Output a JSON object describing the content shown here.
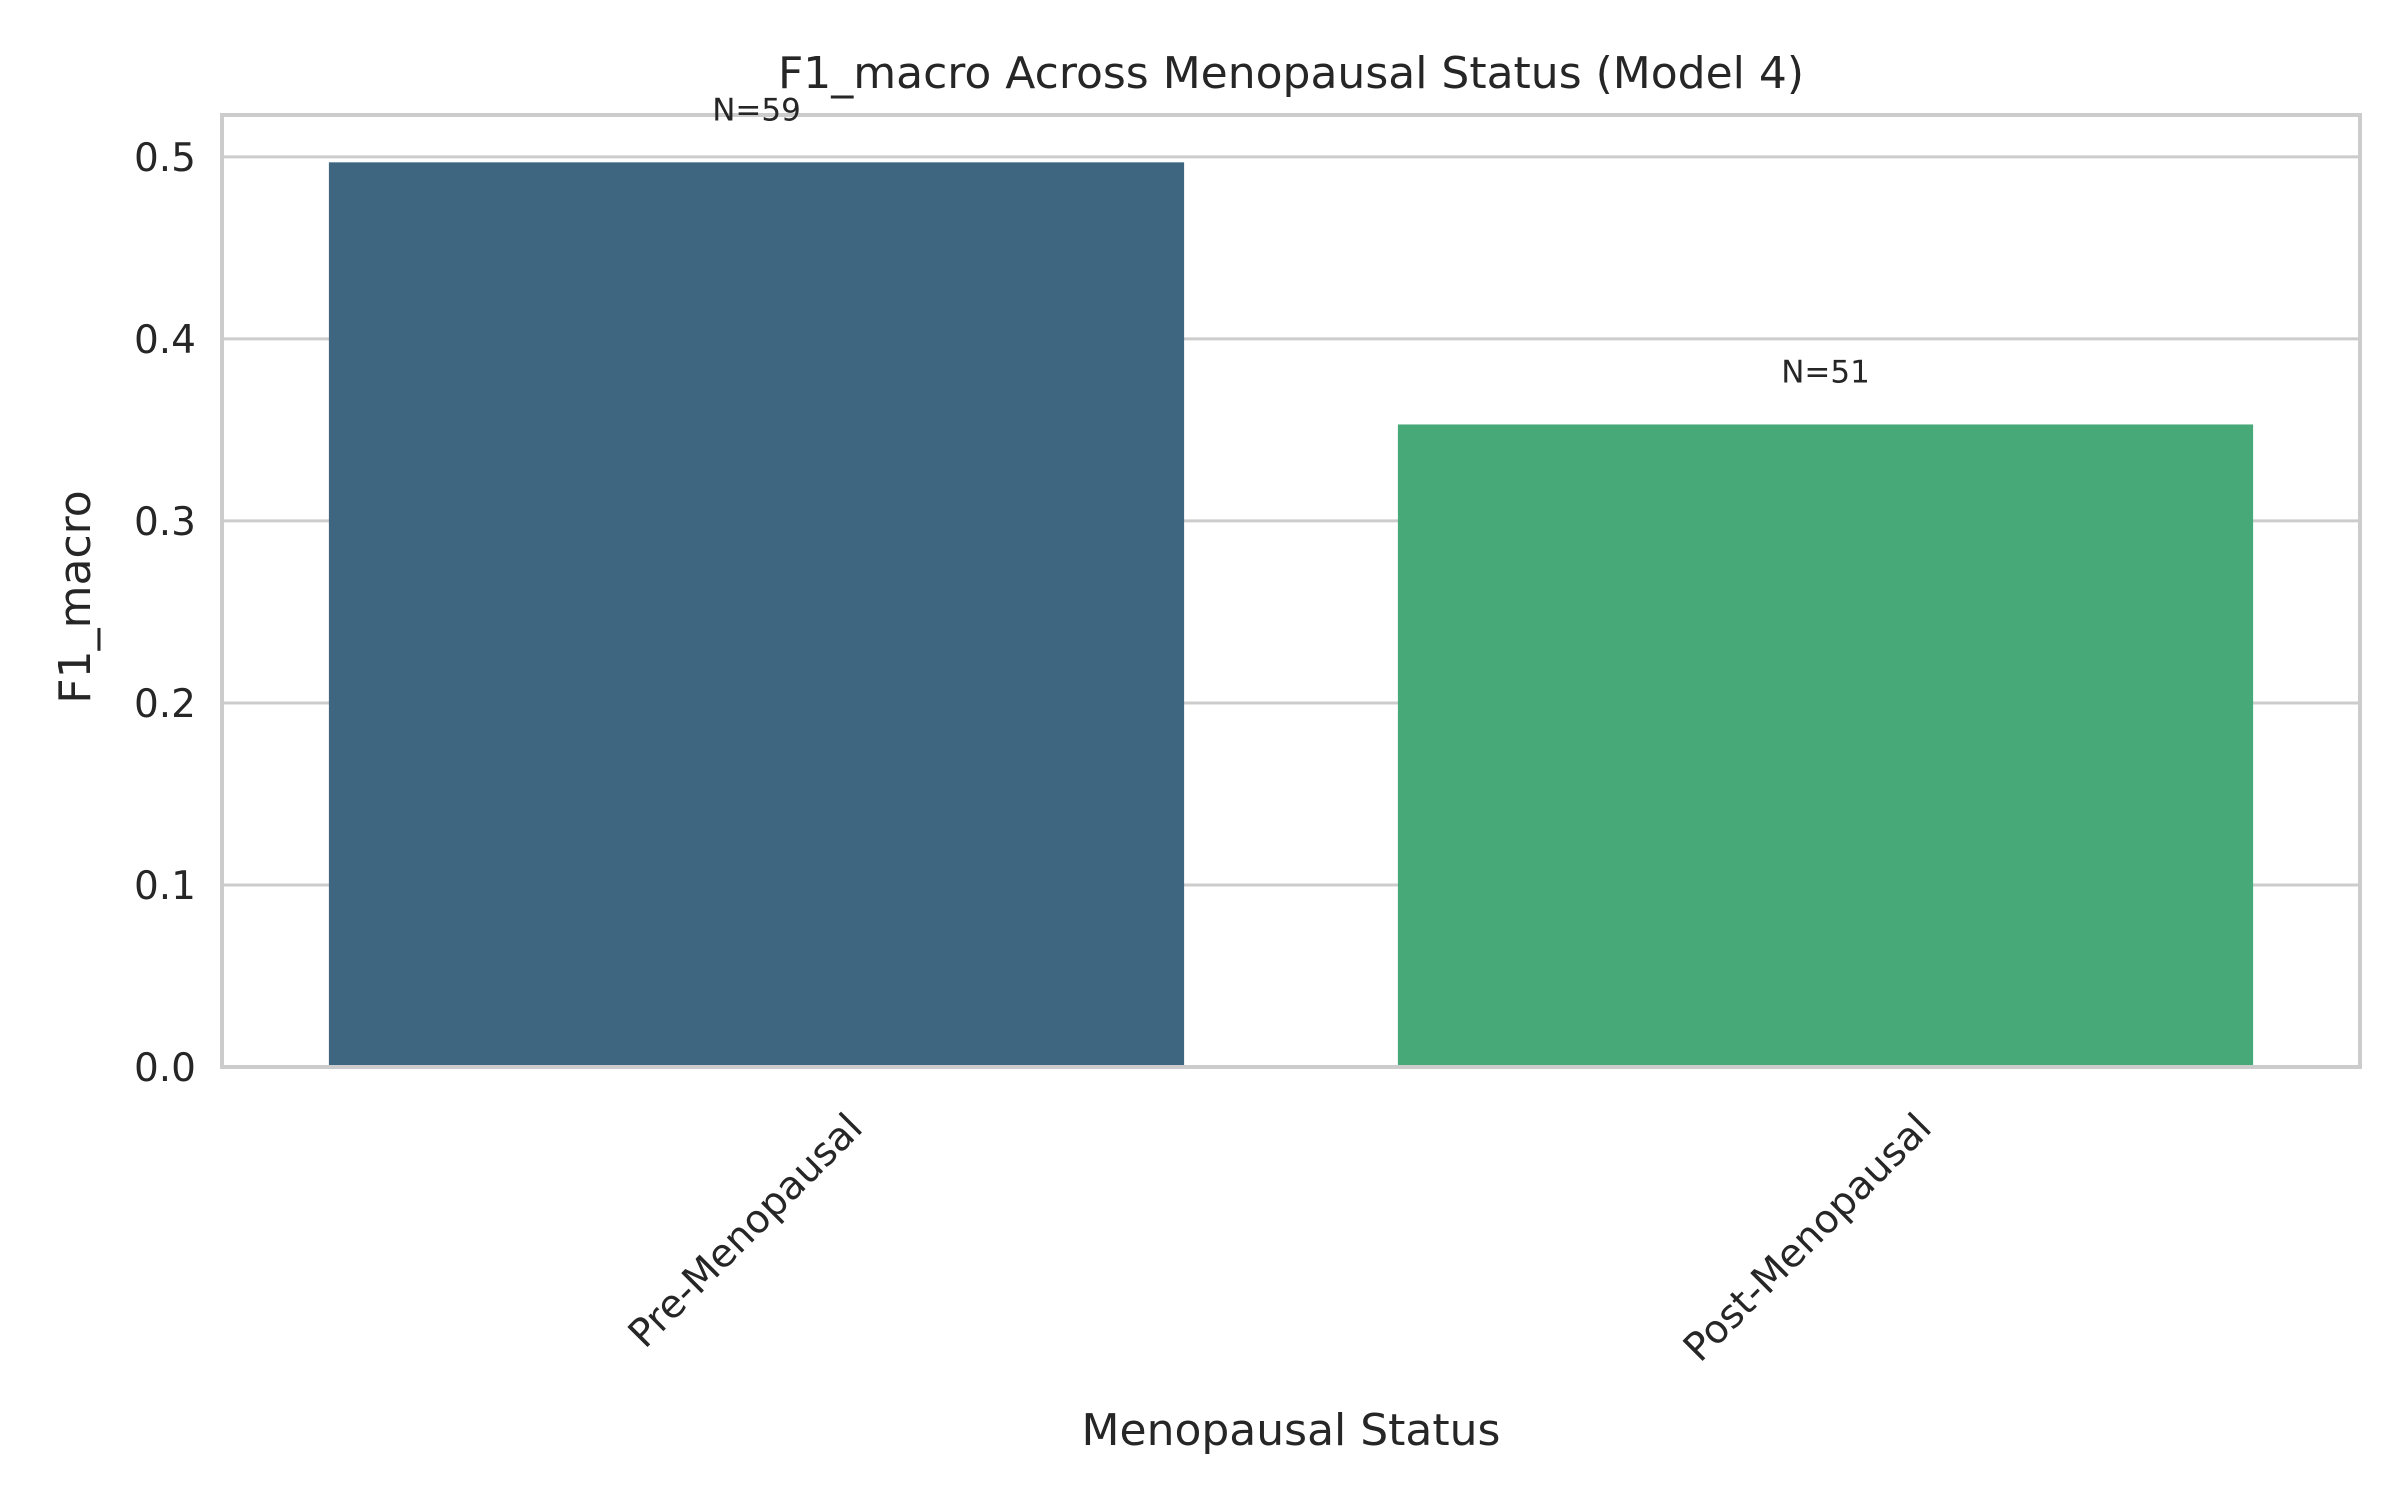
{
  "chart_data": {
    "type": "bar",
    "title": "F1_macro Across Menopausal Status (Model 4)",
    "xlabel": "Menopausal Status",
    "ylabel": "F1_macro",
    "categories": [
      "Pre-Menopausal",
      "Post-Menopausal"
    ],
    "values": [
      0.497,
      0.353
    ],
    "annotations": [
      "N=59",
      "N=51"
    ],
    "colors": [
      "#3e6680",
      "#47a878"
    ],
    "ylim": [
      0,
      0.523
    ],
    "yticks": [
      0.0,
      0.1,
      0.2,
      0.3,
      0.4,
      0.5
    ],
    "ytick_labels": [
      "0.0",
      "0.1",
      "0.2",
      "0.3",
      "0.4",
      "0.5"
    ],
    "grid": true,
    "grid_axis": "y",
    "legend": "none"
  }
}
